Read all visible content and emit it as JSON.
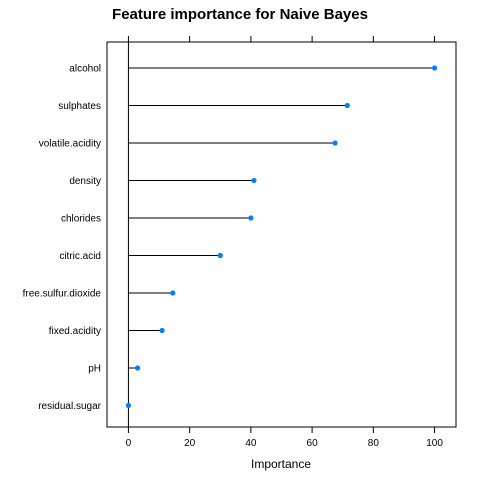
{
  "chart_data": {
    "type": "lollipop",
    "title": "Feature importance for Naive Bayes",
    "xlabel": "Importance",
    "ylabel": "",
    "xlim": [
      -7,
      107
    ],
    "xticks": [
      0,
      20,
      40,
      60,
      80,
      100
    ],
    "categories": [
      "alcohol",
      "sulphates",
      "volatile.acidity",
      "density",
      "chlorides",
      "citric.acid",
      "free.sulfur.dioxide",
      "fixed.acidity",
      "pH",
      "residual.sugar"
    ],
    "values": [
      100,
      71.5,
      67.5,
      41,
      40,
      30,
      14.5,
      11,
      3,
      0
    ],
    "point_color": "#0080ff",
    "line_color": "#000000",
    "grid": false
  }
}
